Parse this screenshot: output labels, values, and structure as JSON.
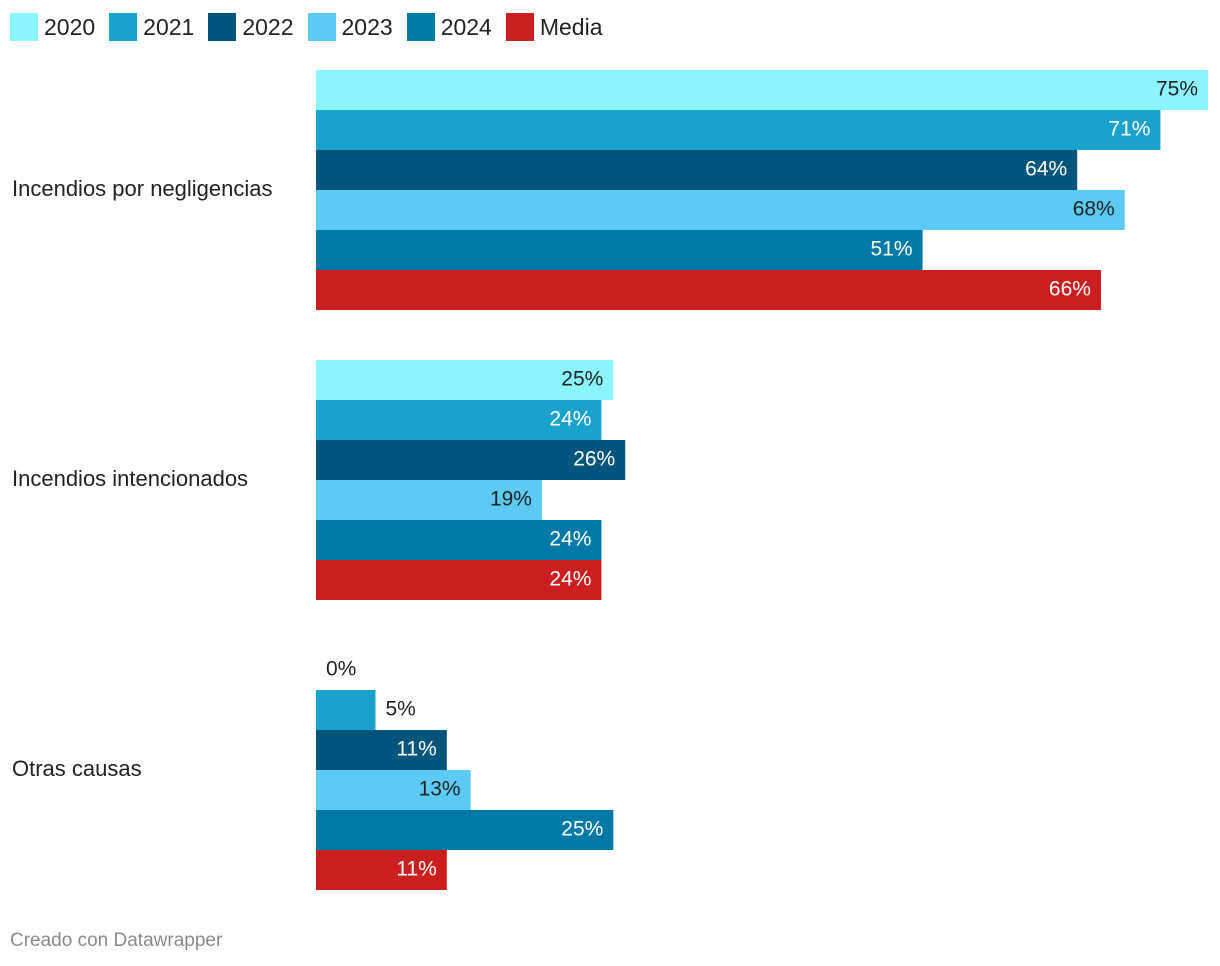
{
  "chart_data": {
    "type": "bar",
    "orientation": "horizontal",
    "title": "",
    "xlabel": "",
    "ylabel": "",
    "xlim": [
      0,
      75
    ],
    "grid": false,
    "legend_position": "top-left",
    "categories": [
      "Incendios por negligencias",
      "Incendios intencionados",
      "Otras causas"
    ],
    "series": [
      {
        "name": "2020",
        "color": "#8af5fe",
        "label_color": "#222222",
        "values": [
          75,
          25,
          0
        ],
        "labels": [
          "75%",
          "25%",
          "0%"
        ]
      },
      {
        "name": "2021",
        "color": "#1aa2ce",
        "label_color": "#ffffff",
        "values": [
          71,
          24,
          5
        ],
        "labels": [
          "71%",
          "24%",
          "5%"
        ]
      },
      {
        "name": "2022",
        "color": "#04557b",
        "label_color": "#ffffff",
        "values": [
          64,
          26,
          11
        ],
        "labels": [
          "64%",
          "26%",
          "11%"
        ]
      },
      {
        "name": "2023",
        "color": "#5bcbf6",
        "label_color": "#222222",
        "values": [
          68,
          19,
          13
        ],
        "labels": [
          "68%",
          "19%",
          "13%"
        ]
      },
      {
        "name": "2024",
        "color": "#0079a7",
        "label_color": "#ffffff",
        "values": [
          51,
          24,
          25
        ],
        "labels": [
          "51%",
          "24%",
          "25%"
        ]
      },
      {
        "name": "Media",
        "color": "#cb1f1f",
        "label_color": "#ffffff",
        "values": [
          66,
          24,
          11
        ],
        "labels": [
          "66%",
          "24%",
          "11%"
        ]
      }
    ]
  },
  "footer": {
    "credit": "Creado con Datawrapper"
  }
}
